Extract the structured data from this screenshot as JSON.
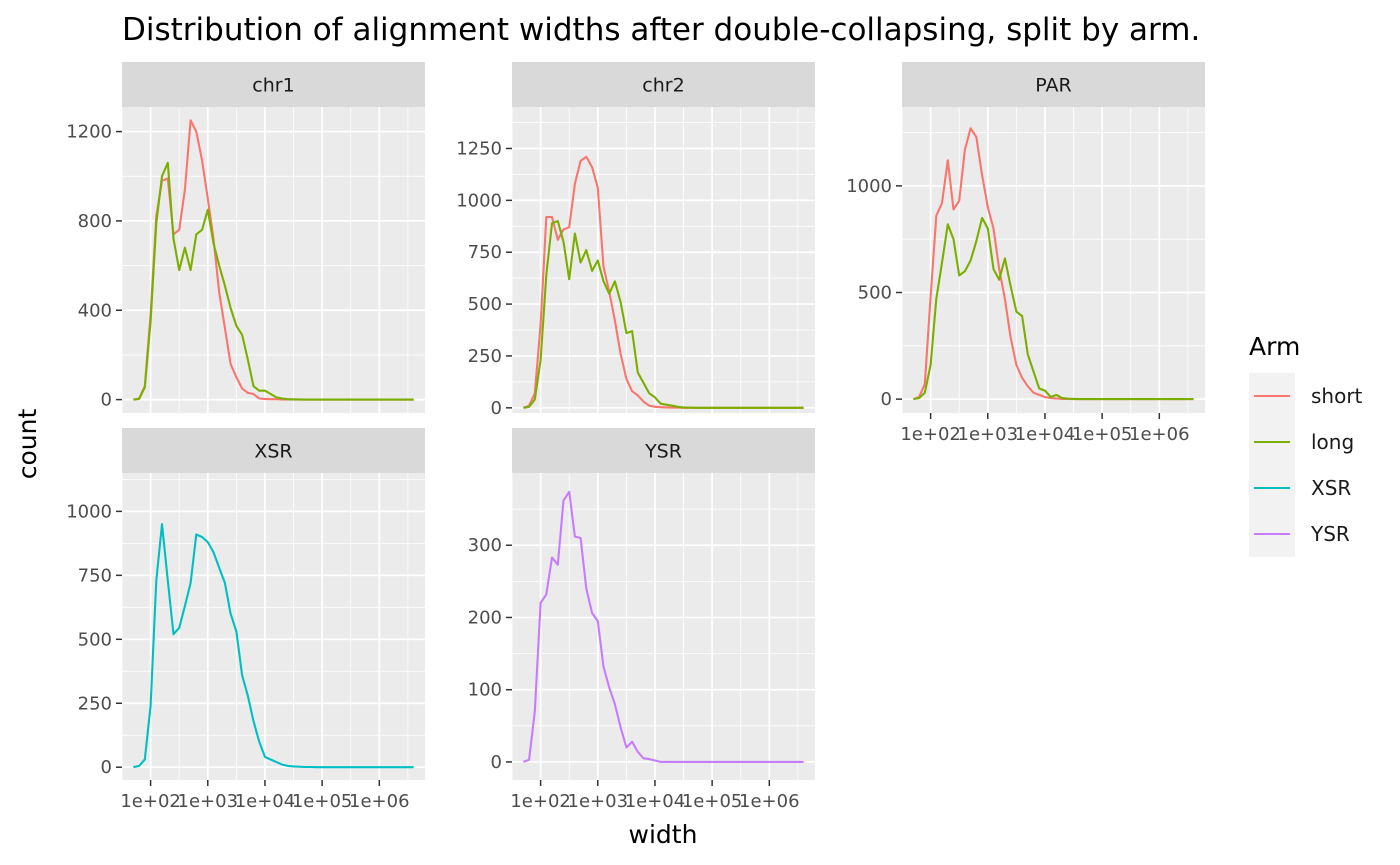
{
  "colors": {
    "panel_bg": "#EBEBEB",
    "strip_bg": "#D9D9D9",
    "grid": "#FFFFFF",
    "tick": "#333333",
    "series": {
      "short": "#F8766D",
      "long": "#7CAE00",
      "XSR": "#00BFC4",
      "YSR": "#C77CFF"
    }
  },
  "chart_data": {
    "type": "line",
    "title": "Distribution of alignment widths after double-collapsing, split by arm.",
    "xlabel": "width",
    "ylabel": "count",
    "x_scale": "log10",
    "x_ticks": [
      100,
      1000,
      10000,
      100000,
      1000000
    ],
    "x_tick_labels": [
      "1e+02",
      "1e+03",
      "1e+04",
      "1e+05",
      "1e+06"
    ],
    "legend": {
      "title": "Arm",
      "position": "right",
      "entries": [
        "short",
        "long",
        "XSR",
        "YSR"
      ]
    },
    "facets": [
      {
        "name": "chr1",
        "ylim": [
          -60,
          1310
        ],
        "yticks": [
          0,
          400,
          800,
          1200
        ],
        "series": [
          {
            "name": "short",
            "x": [
              50,
              63,
              79,
              100,
              126,
              158,
              200,
              251,
              316,
              398,
              501,
              631,
              794,
              1000,
              1259,
              1585,
              1995,
              2512,
              3162,
              3981,
              5012,
              6310,
              7943,
              10000,
              12589,
              15849,
              19953,
              25119,
              31623,
              39811,
              50119,
              63096,
              79433,
              100000,
              125893,
              158489,
              199526,
              251189,
              316228,
              398107,
              501187,
              631000,
              794000,
              1000000,
              1260000,
              1585000,
              1995000,
              2512000,
              3162000,
              3981000
            ],
            "y": [
              0,
              5,
              60,
              380,
              820,
              980,
              990,
              740,
              760,
              940,
              1250,
              1200,
              1070,
              900,
              720,
              480,
              320,
              160,
              100,
              50,
              30,
              25,
              5,
              3,
              2,
              2,
              1,
              1,
              1,
              0,
              0,
              0,
              0,
              0,
              0,
              0,
              0,
              0,
              0,
              0,
              0,
              0,
              0,
              0,
              0,
              0,
              0,
              0,
              0,
              0
            ]
          },
          {
            "name": "long",
            "x": [
              50,
              63,
              79,
              100,
              126,
              158,
              200,
              251,
              316,
              398,
              501,
              631,
              794,
              1000,
              1259,
              1585,
              1995,
              2512,
              3162,
              3981,
              5012,
              6310,
              7943,
              10000,
              12589,
              15849,
              19953,
              25119,
              31623,
              39811,
              50119,
              63096,
              79433,
              100000,
              125893,
              158489,
              199526,
              251189,
              316228,
              398107,
              501187,
              631000,
              794000,
              1000000,
              1260000,
              1585000,
              1995000,
              2512000,
              3162000,
              3981000
            ],
            "y": [
              0,
              3,
              55,
              350,
              790,
              1000,
              1060,
              720,
              580,
              680,
              580,
              740,
              760,
              850,
              700,
              600,
              510,
              410,
              330,
              290,
              180,
              60,
              40,
              40,
              25,
              10,
              5,
              2,
              1,
              1,
              0,
              0,
              0,
              0,
              0,
              0,
              0,
              0,
              0,
              0,
              0,
              0,
              0,
              0,
              0,
              0,
              0,
              0,
              0,
              0
            ]
          }
        ]
      },
      {
        "name": "chr2",
        "ylim": [
          -25,
          1450
        ],
        "yticks": [
          0,
          250,
          500,
          750,
          1000,
          1250
        ],
        "series": [
          {
            "name": "short",
            "x": [
              50,
              63,
              79,
              100,
              126,
              158,
              200,
              251,
              316,
              398,
              501,
              631,
              794,
              1000,
              1259,
              1585,
              1995,
              2512,
              3162,
              3981,
              5012,
              6310,
              7943,
              10000,
              12589,
              15849,
              19953,
              25119,
              31623,
              39811,
              50119,
              63096,
              79433,
              100000,
              125893,
              158489,
              199526,
              251189,
              316228,
              398107,
              501187,
              631000,
              794000,
              1000000,
              1260000,
              1585000,
              1995000,
              2512000,
              3162000,
              3981000
            ],
            "y": [
              0,
              10,
              70,
              400,
              920,
              920,
              810,
              860,
              870,
              1080,
              1190,
              1210,
              1160,
              1060,
              680,
              560,
              420,
              260,
              140,
              80,
              60,
              30,
              10,
              5,
              3,
              2,
              1,
              1,
              0,
              0,
              0,
              0,
              0,
              0,
              0,
              0,
              0,
              0,
              0,
              0,
              0,
              0,
              0,
              0,
              0,
              0,
              0,
              0,
              0,
              0
            ]
          },
          {
            "name": "long",
            "x": [
              50,
              63,
              79,
              100,
              126,
              158,
              200,
              251,
              316,
              398,
              501,
              631,
              794,
              1000,
              1259,
              1585,
              1995,
              2512,
              3162,
              3981,
              5012,
              6310,
              7943,
              10000,
              12589,
              15849,
              19953,
              25119,
              31623,
              39811,
              50119,
              63096,
              79433,
              100000,
              125893,
              158489,
              199526,
              251189,
              316228,
              398107,
              501187,
              631000,
              794000,
              1000000,
              1260000,
              1585000,
              1995000,
              2512000,
              3162000,
              3981000
            ],
            "y": [
              0,
              5,
              40,
              230,
              640,
              890,
              900,
              800,
              620,
              840,
              700,
              760,
              660,
              710,
              610,
              550,
              610,
              510,
              360,
              370,
              170,
              120,
              70,
              50,
              20,
              15,
              10,
              5,
              2,
              1,
              0,
              0,
              0,
              0,
              0,
              0,
              0,
              0,
              0,
              0,
              0,
              0,
              0,
              0,
              0,
              0,
              0,
              0,
              0,
              0
            ]
          }
        ]
      },
      {
        "name": "PAR",
        "ylim": [
          -65,
          1370
        ],
        "yticks": [
          0,
          500,
          1000
        ],
        "series": [
          {
            "name": "short",
            "x": [
              50,
              63,
              79,
              100,
              126,
              158,
              200,
              251,
              316,
              398,
              501,
              631,
              794,
              1000,
              1259,
              1585,
              1995,
              2512,
              3162,
              3981,
              5012,
              6310,
              7943,
              10000,
              12589,
              15849,
              19953,
              25119,
              31623,
              39811,
              50119,
              63096,
              79433,
              100000,
              125893,
              158489,
              199526,
              251189,
              316228,
              398107,
              501187,
              631000,
              794000,
              1000000,
              1260000,
              1585000,
              1995000,
              2512000,
              3162000,
              3981000
            ],
            "y": [
              0,
              10,
              70,
              480,
              860,
              920,
              1120,
              890,
              930,
              1170,
              1270,
              1230,
              1050,
              900,
              800,
              610,
              470,
              290,
              160,
              100,
              60,
              30,
              20,
              10,
              5,
              3,
              1,
              1,
              0,
              0,
              0,
              0,
              0,
              0,
              0,
              0,
              0,
              0,
              0,
              0,
              0,
              0,
              0,
              0,
              0,
              0,
              0,
              0,
              0,
              0
            ]
          },
          {
            "name": "long",
            "x": [
              50,
              63,
              79,
              100,
              126,
              158,
              200,
              251,
              316,
              398,
              501,
              631,
              794,
              1000,
              1259,
              1585,
              1995,
              2512,
              3162,
              3981,
              5012,
              6310,
              7943,
              10000,
              12589,
              15849,
              19953,
              25119,
              31623,
              39811,
              50119,
              63096,
              79433,
              100000,
              125893,
              158489,
              199526,
              251189,
              316228,
              398107,
              501187,
              631000,
              794000,
              1000000,
              1260000,
              1585000,
              1995000,
              2512000,
              3162000,
              3981000
            ],
            "y": [
              0,
              5,
              30,
              160,
              470,
              640,
              820,
              750,
              580,
              600,
              650,
              740,
              850,
              800,
              610,
              560,
              660,
              530,
              410,
              390,
              210,
              130,
              50,
              40,
              10,
              20,
              5,
              2,
              1,
              0,
              0,
              0,
              0,
              0,
              0,
              0,
              0,
              0,
              0,
              0,
              0,
              0,
              0,
              0,
              0,
              0,
              0,
              0,
              0,
              0
            ]
          }
        ]
      },
      {
        "name": "XSR",
        "ylim": [
          -50,
          1150
        ],
        "yticks": [
          0,
          250,
          500,
          750,
          1000
        ],
        "series": [
          {
            "name": "XSR",
            "x": [
              50,
              63,
              79,
              100,
              126,
              158,
              200,
              251,
              316,
              398,
              501,
              631,
              794,
              1000,
              1259,
              1585,
              1995,
              2512,
              3162,
              3981,
              5012,
              6310,
              7943,
              10000,
              12589,
              15849,
              19953,
              25119,
              31623,
              39811,
              50119,
              63096,
              79433,
              100000,
              125893,
              158489,
              199526,
              251189,
              316228,
              398107,
              501187,
              631000,
              794000,
              1000000,
              1260000,
              1585000,
              1995000,
              2512000,
              3162000,
              3981000
            ],
            "y": [
              0,
              5,
              30,
              240,
              730,
              950,
              730,
              520,
              545,
              630,
              720,
              910,
              900,
              880,
              840,
              780,
              720,
              600,
              530,
              360,
              280,
              180,
              100,
              40,
              30,
              20,
              10,
              5,
              3,
              2,
              1,
              1,
              0,
              0,
              0,
              0,
              0,
              0,
              0,
              0,
              0,
              0,
              0,
              0,
              0,
              0,
              0,
              0,
              0,
              0
            ]
          }
        ]
      },
      {
        "name": "YSR",
        "ylim": [
          -25,
          400
        ],
        "yticks": [
          0,
          100,
          200,
          300
        ],
        "series": [
          {
            "name": "YSR",
            "x": [
              50,
              63,
              79,
              100,
              126,
              158,
              200,
              251,
              316,
              398,
              501,
              631,
              794,
              1000,
              1259,
              1585,
              1995,
              2512,
              3162,
              3981,
              5012,
              6310,
              7943,
              10000,
              12589,
              15849,
              19953,
              25119,
              31623,
              39811,
              50119,
              63096,
              79433,
              100000,
              125893,
              158489,
              199526,
              251189,
              316228,
              398107,
              501187,
              631000,
              794000,
              1000000,
              1260000,
              1585000,
              1995000,
              2512000,
              3162000,
              3981000
            ],
            "y": [
              0,
              3,
              70,
              220,
              232,
              283,
              273,
              362,
              374,
              312,
              310,
              240,
              206,
              195,
              132,
              103,
              80,
              48,
              20,
              28,
              14,
              5,
              4,
              2,
              0,
              0,
              0,
              0,
              0,
              0,
              0,
              0,
              0,
              0,
              0,
              0,
              0,
              0,
              0,
              0,
              0,
              0,
              0,
              0,
              0,
              0,
              0,
              0,
              0,
              0
            ]
          }
        ]
      }
    ]
  }
}
